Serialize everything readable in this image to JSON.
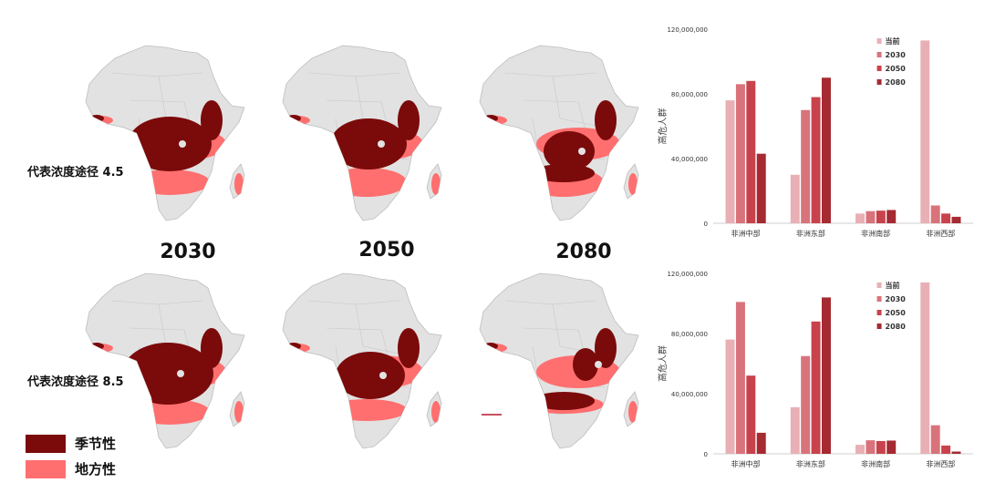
{
  "colors": {
    "seasonal": "#7b0a0a",
    "endemic": "#ff6f6f",
    "land": "#e2e2e2",
    "border": "#bdbdbd",
    "series": [
      "#e8b0b5",
      "#d9737b",
      "#c8424c",
      "#a52a32"
    ]
  },
  "years": [
    "2030",
    "2050",
    "2080"
  ],
  "scenarios": [
    "代表浓度途径 4.5",
    "代表浓度途径 8.5"
  ],
  "legend": [
    {
      "label": "季节性",
      "color_key": "seasonal"
    },
    {
      "label": "地方性",
      "color_key": "endemic"
    }
  ],
  "chart_data": [
    {
      "type": "bar",
      "categories": [
        "非洲中部",
        "非洲东部",
        "非洲南部",
        "非洲西部"
      ],
      "series": [
        {
          "name": "当前",
          "values": [
            76000000,
            30000000,
            6000000,
            113000000
          ]
        },
        {
          "name": "2030",
          "values": [
            86000000,
            70000000,
            7500000,
            11000000
          ]
        },
        {
          "name": "2050",
          "values": [
            88000000,
            78000000,
            7800000,
            6000000
          ]
        },
        {
          "name": "2080",
          "values": [
            43000000,
            90000000,
            8200000,
            4000000
          ]
        }
      ],
      "ylabel": "高危人群",
      "ylim": [
        0,
        120000000
      ],
      "yticks": [
        "0",
        "40,000,000",
        "80,000,000",
        "120,000,000"
      ],
      "legend_position": "top-right",
      "grid": false
    },
    {
      "type": "bar",
      "categories": [
        "非洲中部",
        "非洲东部",
        "非洲南部",
        "非洲西部"
      ],
      "series": [
        {
          "name": "当前",
          "values": [
            76000000,
            31000000,
            6000000,
            114000000
          ]
        },
        {
          "name": "2030",
          "values": [
            101000000,
            65000000,
            9000000,
            19000000
          ]
        },
        {
          "name": "2050",
          "values": [
            52000000,
            88000000,
            8500000,
            5500000
          ]
        },
        {
          "name": "2080",
          "values": [
            14000000,
            104000000,
            8800000,
            1500000
          ]
        }
      ],
      "ylabel": "高危人群",
      "ylim": [
        0,
        120000000
      ],
      "yticks": [
        "0",
        "40,000,000",
        "80,000,000",
        "120,000,000"
      ],
      "legend_position": "top-right",
      "grid": false
    }
  ]
}
